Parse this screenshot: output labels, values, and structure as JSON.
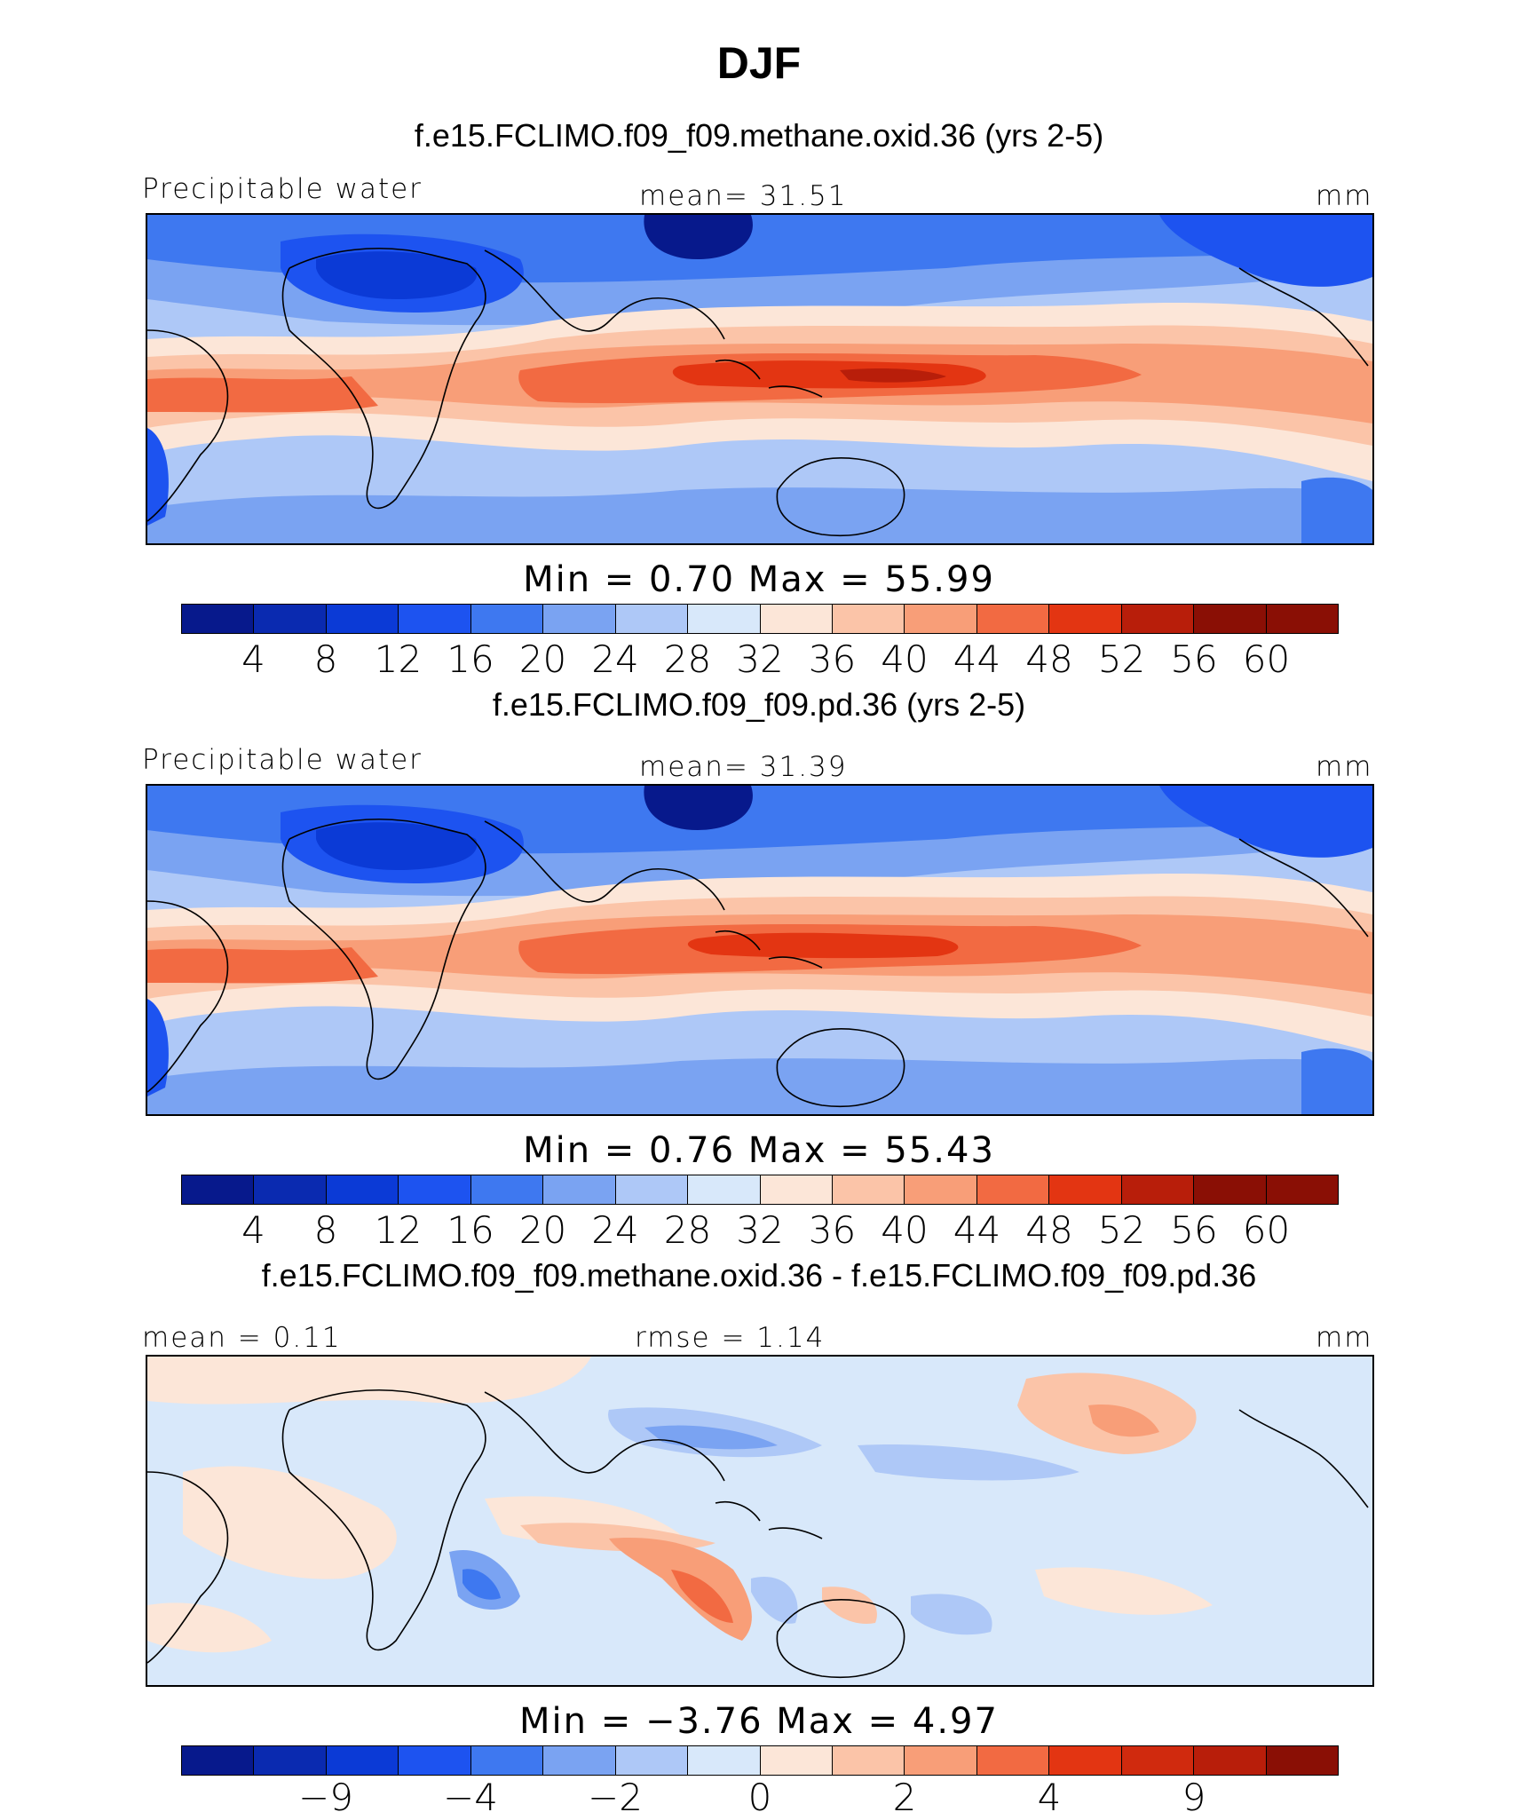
{
  "page": {
    "title": "DJF"
  },
  "colors": {
    "abs_palette": [
      "#07198c",
      "#0a2ab0",
      "#0b3ad6",
      "#1d53f0",
      "#3e78f0",
      "#7aa3f2",
      "#aec8f7",
      "#d8e8fa",
      "#fce6d8",
      "#fbc4a8",
      "#f89e78",
      "#f26a42",
      "#e33512",
      "#b81e0a",
      "#8a0f05"
    ],
    "diff_palette": [
      "#07198c",
      "#0a2ab0",
      "#1d53f0",
      "#3e78f0",
      "#7aa3f2",
      "#aec8f7",
      "#d8e8fa",
      "#fce6d8",
      "#fbc4a8",
      "#f89e78",
      "#f26a42",
      "#e33512",
      "#b81e0a",
      "#8a0f05"
    ]
  },
  "chart_data": [
    {
      "type": "heatmap",
      "title": "f.e15.FCLIMO.f09_f09.methane.oxid.36 (yrs 2-5)",
      "left_label": "Precipitable water",
      "center_label": "mean=  31.51",
      "units": "mm",
      "min_max": "Min  =    0.70  Max  =   55.99",
      "min": 0.7,
      "max": 55.99,
      "mean": 31.51,
      "colorbar_levels": [
        "4",
        "8",
        "12",
        "16",
        "20",
        "24",
        "28",
        "32",
        "36",
        "40",
        "44",
        "48",
        "52",
        "56",
        "60"
      ]
    },
    {
      "type": "heatmap",
      "title": "f.e15.FCLIMO.f09_f09.pd.36 (yrs 2-5)",
      "left_label": "Precipitable water",
      "center_label": "mean=  31.39",
      "units": "mm",
      "min_max": "Min  =    0.76  Max  =   55.43",
      "min": 0.76,
      "max": 55.43,
      "mean": 31.39,
      "colorbar_levels": [
        "4",
        "8",
        "12",
        "16",
        "20",
        "24",
        "28",
        "32",
        "36",
        "40",
        "44",
        "48",
        "52",
        "56",
        "60"
      ]
    },
    {
      "type": "heatmap",
      "title": "f.e15.FCLIMO.f09_f09.methane.oxid.36 - f.e15.FCLIMO.f09_f09.pd.36",
      "left_label": "mean =   0.11",
      "center_label": "rmse =   1.14",
      "units": "mm",
      "min_max": "Min  =  −3.76  Max  =    4.97",
      "min": -3.76,
      "max": 4.97,
      "mean": 0.11,
      "rmse": 1.14,
      "colorbar_levels": [
        "−9",
        "−4",
        "−2",
        "0",
        "2",
        "4",
        "9"
      ]
    }
  ]
}
